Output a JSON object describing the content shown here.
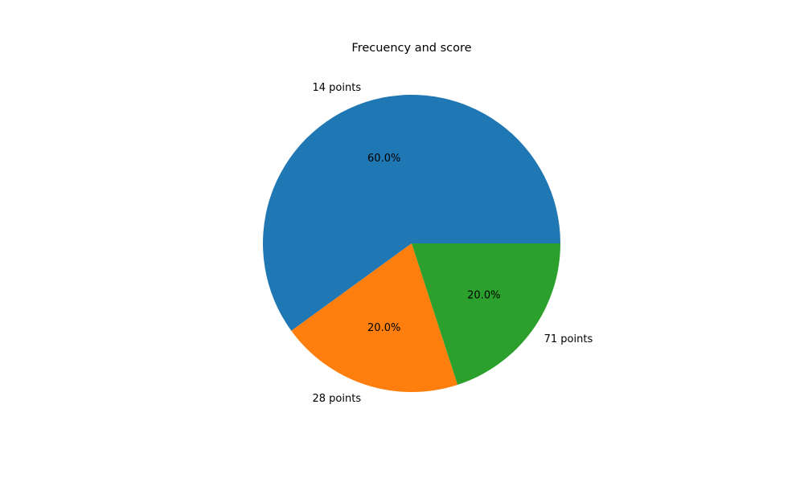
{
  "chart_data": {
    "type": "pie",
    "title": "Frecuency and score",
    "categories": [
      "14 points",
      "28 points",
      "71 points"
    ],
    "values": [
      60.0,
      20.0,
      20.0
    ],
    "percent_labels": [
      "60.0%",
      "20.0%",
      "20.0%"
    ],
    "colors": [
      "#1f77b4",
      "#ff7f0e",
      "#2ca02c"
    ],
    "start_angle_deg": 0,
    "direction": "counterclockwise",
    "legend": "none"
  }
}
